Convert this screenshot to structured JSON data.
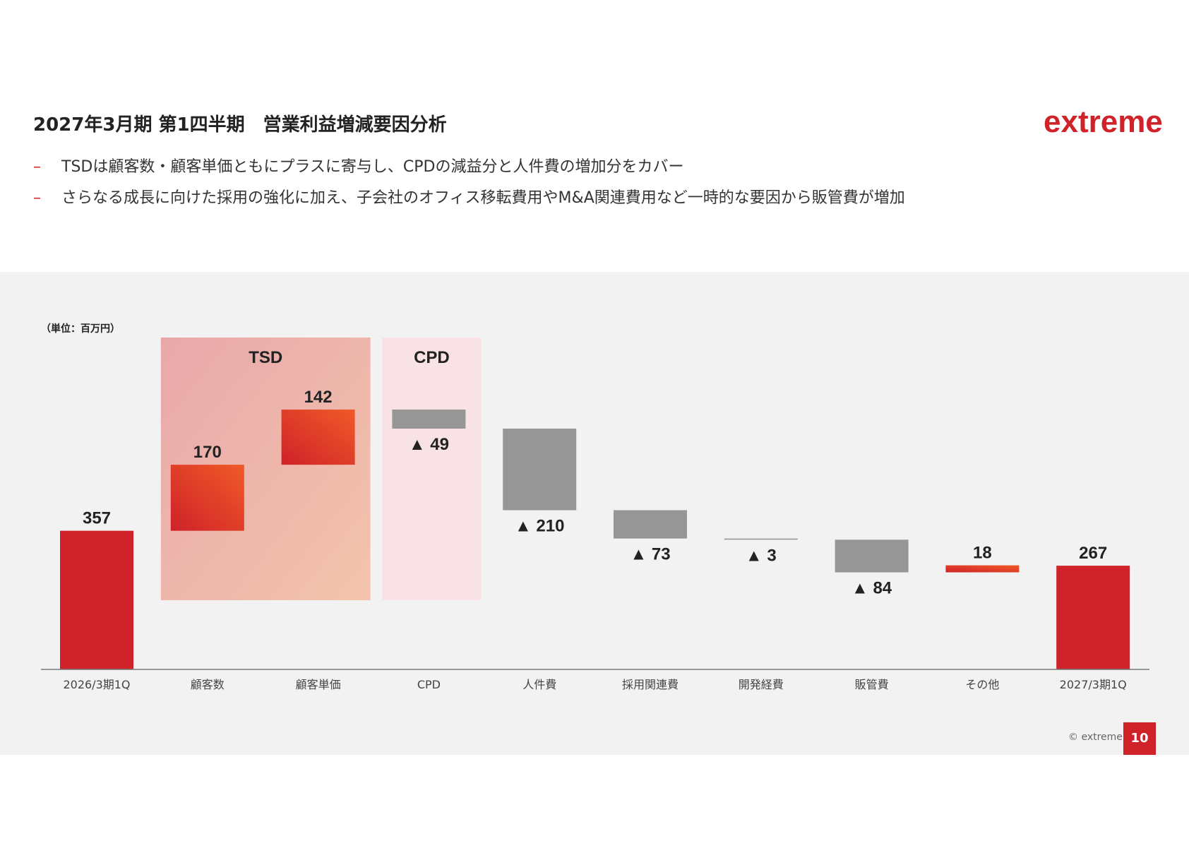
{
  "title": "2027年3月期 第1四半期　営業利益増減要因分析",
  "logo_text": "extreme",
  "bullets": [
    "TSDは顧客数・顧客単価ともにプラスに寄与し、CPDの減益分と人件費の増加分をカバー",
    "さらなる成長に向けた採用の強化に加え、子会社のオフィス移転費用やM&A関連費用など一時的な要因から販管費が増加"
  ],
  "bullet_marker": "–",
  "copyright": "© extreme",
  "page_number": "10",
  "colors": {
    "brand_red": "#cf2229",
    "increase_start": "#cf2229",
    "increase_end": "#f05a28",
    "decrease": "#969696",
    "tsd_group_bg": "#e8a8ab",
    "cpd_group_bg": "#f9e2e6",
    "panel_bg": "#f2f2f2"
  },
  "chart_data": {
    "type": "waterfall",
    "unit_label": "（単位：百万円）",
    "categories": [
      "2026/3期1Q",
      "顧客数",
      "顧客単価",
      "CPD",
      "人件費",
      "採用関連費",
      "開発経費",
      "販管費",
      "その他",
      "2027/3期1Q"
    ],
    "values": [
      357,
      170,
      142,
      -49,
      -210,
      -73,
      -3,
      -84,
      18,
      267
    ],
    "kinds": [
      "total",
      "increase",
      "increase",
      "decrease",
      "decrease",
      "decrease",
      "decrease",
      "decrease",
      "increase",
      "total"
    ],
    "value_labels": [
      "357",
      "170",
      "142",
      "▲ 49",
      "▲ 210",
      "▲ 73",
      "▲ 3",
      "▲ 84",
      "18",
      "267"
    ],
    "groups": [
      {
        "name": "TSD",
        "categories": [
          "顧客数",
          "顧客単価"
        ]
      },
      {
        "name": "CPD",
        "categories": [
          "CPD"
        ]
      }
    ],
    "ylim": [
      0,
      700
    ],
    "grid": false,
    "legend": "none"
  }
}
